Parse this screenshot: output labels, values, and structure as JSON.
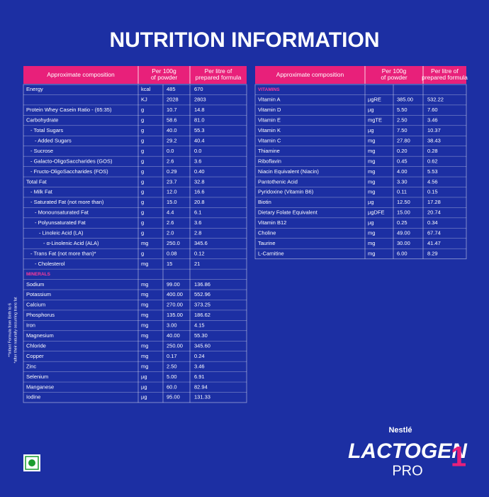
{
  "title": "NUTRITION INFORMATION",
  "left_table": {
    "headers": [
      "Approximate composition",
      "Per 100g of powder",
      "Per litre of prepared formula"
    ],
    "rows": [
      {
        "name": "Energy",
        "unit": "kcal",
        "per_100g": "485",
        "per_litre": "670"
      },
      {
        "unit": "KJ",
        "per_100g": "2028",
        "per_litre": "2803"
      },
      {
        "name": "Protein Whey Casein Ratio - (65:35)",
        "unit": "g",
        "per_100g": "10.7",
        "per_litre": "14.8"
      },
      {
        "name": "Carbohydrate",
        "unit": "g",
        "per_100g": "58.6",
        "per_litre": "81.0"
      },
      {
        "name": "- Total Sugars",
        "unit": "g",
        "per_100g": "40.0",
        "per_litre": "55.3"
      },
      {
        "name": "- Added Sugars",
        "unit": "g",
        "per_100g": "29.2",
        "per_litre": "40.4"
      },
      {
        "name": "- Sucrose",
        "unit": "g",
        "per_100g": "0.0",
        "per_litre": "0.0"
      },
      {
        "name": "- Galacto-OligoSaccharides (GOS)",
        "unit": "g",
        "per_100g": "2.6",
        "per_litre": "3.6"
      },
      {
        "name": "- Fructo-OligoSaccharides (FOS)",
        "unit": "g",
        "per_100g": "0.29",
        "per_litre": "0.40"
      },
      {
        "name": "Total Fat",
        "unit": "g",
        "per_100g": "23.7",
        "per_litre": "32.8"
      },
      {
        "name": "- Milk Fat",
        "unit": "g",
        "per_100g": "12.0",
        "per_litre": "16.6"
      },
      {
        "name": "- Saturated Fat (not more than)",
        "unit": "g",
        "per_100g": "15.0",
        "per_litre": "20.8"
      },
      {
        "name": "- Monounsaturated Fat",
        "unit": "g",
        "per_100g": "4.4",
        "per_litre": "6.1"
      },
      {
        "name": "- Polyunsaturated Fat",
        "unit": "g",
        "per_100g": "2.6",
        "per_litre": "3.6"
      },
      {
        "name": "- Linoleic Acid (LA)",
        "unit": "g",
        "per_100g": "2.0",
        "per_litre": "2.8"
      },
      {
        "name": "- α-Linolenic Acid (ALA)",
        "unit": "mg",
        "per_100g": "250.0",
        "per_litre": "345.6"
      },
      {
        "name": "- Trans Fat (not more than)*",
        "unit": "g",
        "per_100g": "0.08",
        "per_litre": "0.12"
      },
      {
        "name": "- Cholesterol",
        "unit": "mg",
        "per_100g": "15",
        "per_litre": "21"
      },
      {
        "section": "MINERALS"
      },
      {
        "name": "Sodium",
        "unit": "mg",
        "per_100g": "99.00",
        "per_litre": "136.86"
      },
      {
        "name": "Potassium",
        "unit": "mg",
        "per_100g": "400.00",
        "per_litre": "552.96"
      },
      {
        "name": "Calcium",
        "unit": "mg",
        "per_100g": "270.00",
        "per_litre": "373.25"
      },
      {
        "name": "Phosphorus",
        "unit": "mg",
        "per_100g": "135.00",
        "per_litre": "186.62"
      },
      {
        "name": "Iron",
        "unit": "mg",
        "per_100g": "3.00",
        "per_litre": "4.15"
      },
      {
        "name": "Magnesium",
        "unit": "mg",
        "per_100g": "40.00",
        "per_litre": "55.30"
      },
      {
        "name": "Chloride",
        "unit": "mg",
        "per_100g": "250.00",
        "per_litre": "345.60"
      },
      {
        "name": "Copper",
        "unit": "mg",
        "per_100g": "0.17",
        "per_litre": "0.24"
      },
      {
        "name": "Zinc",
        "unit": "mg",
        "per_100g": "2.50",
        "per_litre": "3.46"
      },
      {
        "name": "Selenium",
        "unit": "µg",
        "per_100g": "5.00",
        "per_litre": "6.91"
      },
      {
        "name": "Manganese",
        "unit": "µg",
        "per_100g": "60.0",
        "per_litre": "82.94"
      },
      {
        "name": "Iodine",
        "unit": "µg",
        "per_100g": "95.00",
        "per_litre": "131.33"
      }
    ]
  },
  "right_table": {
    "headers": [
      "Approximate composition",
      "Per 100g of powder",
      "Per litre of prepared formula"
    ],
    "rows": [
      {
        "section": "VITAMINS"
      },
      {
        "name": "Vitamin A",
        "unit": "µgRE",
        "per_100g": "385.00",
        "per_litre": "532.22"
      },
      {
        "name": "Vitamin D",
        "unit": "µg",
        "per_100g": "5.50",
        "per_litre": "7.60"
      },
      {
        "name": "Vitamin E",
        "unit": "mgTE",
        "per_100g": "2.50",
        "per_litre": "3.46"
      },
      {
        "name": "Vitamin K",
        "unit": "µg",
        "per_100g": "7.50",
        "per_litre": "10.37"
      },
      {
        "name": "Vitamin C",
        "unit": "mg",
        "per_100g": "27.80",
        "per_litre": "38.43"
      },
      {
        "name": "Thiamine",
        "unit": "mg",
        "per_100g": "0.20",
        "per_litre": "0.28"
      },
      {
        "name": "Riboflavin",
        "unit": "mg",
        "per_100g": "0.45",
        "per_litre": "0.62"
      },
      {
        "name": "Niacin Equivalent (Niacin)",
        "unit": "mg",
        "per_100g": "4.00",
        "per_litre": "5.53"
      },
      {
        "name": "Pantothenic Acid",
        "unit": "mg",
        "per_100g": "3.30",
        "per_litre": "4.56"
      },
      {
        "name": "Pyridoxine (Vitamin B6)",
        "unit": "mg",
        "per_100g": "0.11",
        "per_litre": "0.15"
      },
      {
        "name": "Biotin",
        "unit": "µg",
        "per_100g": "12.50",
        "per_litre": "17.28"
      },
      {
        "name": "Dietary Folate Equivalent",
        "unit": "µgDFE",
        "per_100g": "15.00",
        "per_litre": "20.74"
      },
      {
        "name": "Vitamin B12",
        "unit": "µg",
        "per_100g": "0.25",
        "per_litre": "0.34"
      },
      {
        "name": "Choline",
        "unit": "mg",
        "per_100g": "49.00",
        "per_litre": "67.74"
      },
      {
        "name": "Taurine",
        "unit": "mg",
        "per_100g": "30.00",
        "per_litre": "41.47"
      },
      {
        "name": "L-Carnitine",
        "unit": "mg",
        "per_100g": "6.00",
        "per_litre": "8.29"
      }
    ]
  },
  "footnotes": [
    "*after their naturally occurring trans fat",
    "**Infant Formula from Birth to 6"
  ],
  "brand": {
    "maker": "Nestlé",
    "product": "LACTOGEN",
    "variant": "PRO",
    "stage": "1"
  }
}
